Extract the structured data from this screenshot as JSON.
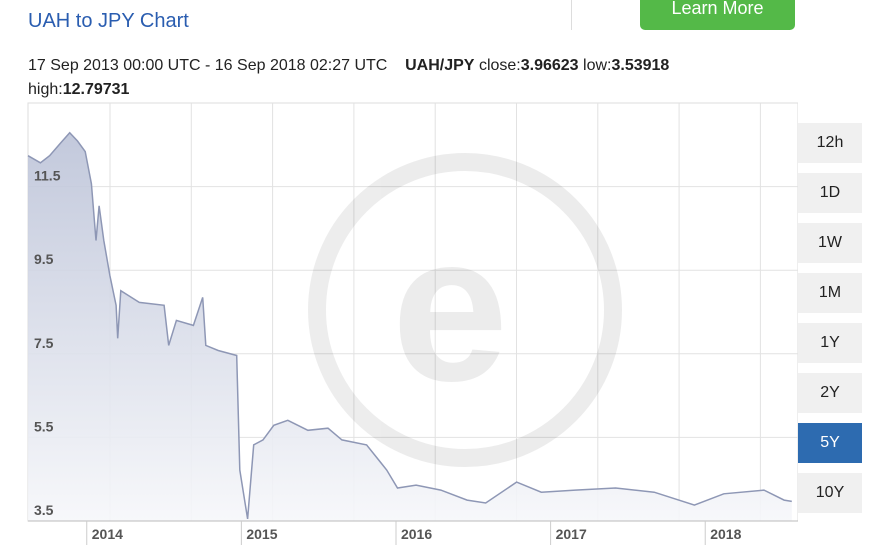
{
  "header": {
    "title": "UAH to JPY Chart",
    "button": "Learn More"
  },
  "summary": {
    "period": "17 Sep 2013 00:00 UTC - 16 Sep 2018 02:27 UTC",
    "pair": "UAH/JPY",
    "close_label": "close:",
    "close": "3.96623",
    "low_label": "low:",
    "low": "3.53918",
    "high_label": "high:",
    "high": "12.79731"
  },
  "ranges": [
    "12h",
    "1D",
    "1W",
    "1M",
    "1Y",
    "2Y",
    "5Y",
    "10Y"
  ],
  "selected_range": "5Y",
  "chart_data": {
    "type": "area",
    "color": "#8e97b5",
    "x": [
      2013.62,
      2013.7,
      2013.76,
      2013.83,
      2013.89,
      2013.94,
      2013.99,
      2014.03,
      2014.06,
      2014.08,
      2014.11,
      2014.15,
      2014.19,
      2014.2,
      2014.22,
      2014.34,
      2014.5,
      2014.53,
      2014.58,
      2014.69,
      2014.75,
      2014.77,
      2014.85,
      2014.97,
      2014.99,
      2015.04,
      2015.08,
      2015.14,
      2015.21,
      2015.3,
      2015.43,
      2015.56,
      2015.65,
      2015.81,
      2015.94,
      2016.01,
      2016.13,
      2016.29,
      2016.46,
      2016.58,
      2016.78,
      2016.94,
      2017.16,
      2017.42,
      2017.67,
      2017.93,
      2018.12,
      2018.38,
      2018.51,
      2018.56
    ],
    "values": [
      12.24,
      12.07,
      12.24,
      12.54,
      12.79,
      12.59,
      12.34,
      11.57,
      10.21,
      11.04,
      10.21,
      9.37,
      8.66,
      7.87,
      9.01,
      8.73,
      8.66,
      7.7,
      8.3,
      8.18,
      8.85,
      7.7,
      7.58,
      7.46,
      4.72,
      3.55,
      5.32,
      5.44,
      5.79,
      5.91,
      5.67,
      5.72,
      5.44,
      5.32,
      4.72,
      4.29,
      4.36,
      4.24,
      4.0,
      3.93,
      4.43,
      4.19,
      4.24,
      4.29,
      4.19,
      3.88,
      4.15,
      4.24,
      4.0,
      3.97
    ],
    "xlim": [
      2013.62,
      2018.6
    ],
    "xticks": [
      2014,
      2015,
      2016,
      2017,
      2018
    ],
    "ylim": [
      3.5,
      13.5
    ],
    "yticks": [
      3.5,
      5.5,
      7.5,
      9.5,
      11.5
    ],
    "grid": true
  }
}
